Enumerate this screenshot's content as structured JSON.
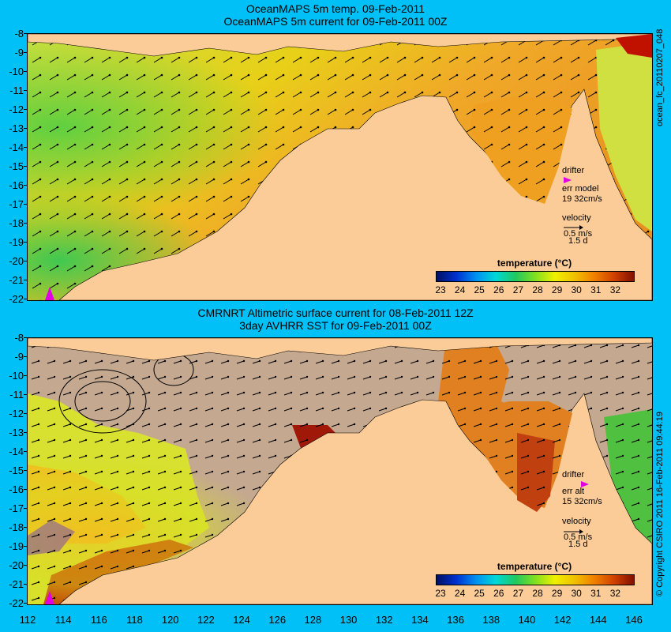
{
  "top_panel": {
    "title_line1": "OceanMAPS 5m temp. 09-Feb-2011",
    "title_line2": "OceanMAPS 5m current for 09-Feb-2011 00Z",
    "drifter_label": "drifter",
    "err_label": "err model",
    "err_value": "19 32cm/s",
    "velocity_label": "velocity",
    "velocity_scale": "0.5 m/s",
    "velocity_time": "1.5 d",
    "side_text": "ocean_fc_20110207_048"
  },
  "bottom_panel": {
    "title_line1": "CMRNRT Altimetric surface current for 08-Feb-2011 12Z",
    "title_line2": "3day AVHRR SST for 09-Feb-2011 00Z",
    "drifter_label": "drifter",
    "err_label": "err alt",
    "err_value": "15 32cm/s",
    "velocity_label": "velocity",
    "velocity_scale": "0.5 m/s",
    "velocity_time": "1.5 d",
    "side_text": "© Copyright CSIRO 2011   16-Feb-2011 09:44:19"
  },
  "colorbar": {
    "title": "temperature (°C)",
    "ticks": [
      "23",
      "24",
      "25",
      "26",
      "27",
      "28",
      "29",
      "30",
      "31",
      "32"
    ]
  },
  "axes": {
    "lat_labels": [
      "-8",
      "-9",
      "-10",
      "-11",
      "-12",
      "-13",
      "-14",
      "-15",
      "-16",
      "-17",
      "-18",
      "-19",
      "-20",
      "-21",
      "-22"
    ],
    "lon_labels": [
      "112",
      "114",
      "116",
      "118",
      "120",
      "122",
      "124",
      "126",
      "128",
      "130",
      "132",
      "134",
      "136",
      "138",
      "140",
      "142",
      "144",
      "146"
    ]
  },
  "colors": {
    "background": "#00c0f8",
    "land": "#fccc98",
    "masked_ocean": "#c4a890",
    "warm_sea": "#f0a020",
    "cool_sea": "#d8e030",
    "drifter_marker": "#e000e0"
  }
}
